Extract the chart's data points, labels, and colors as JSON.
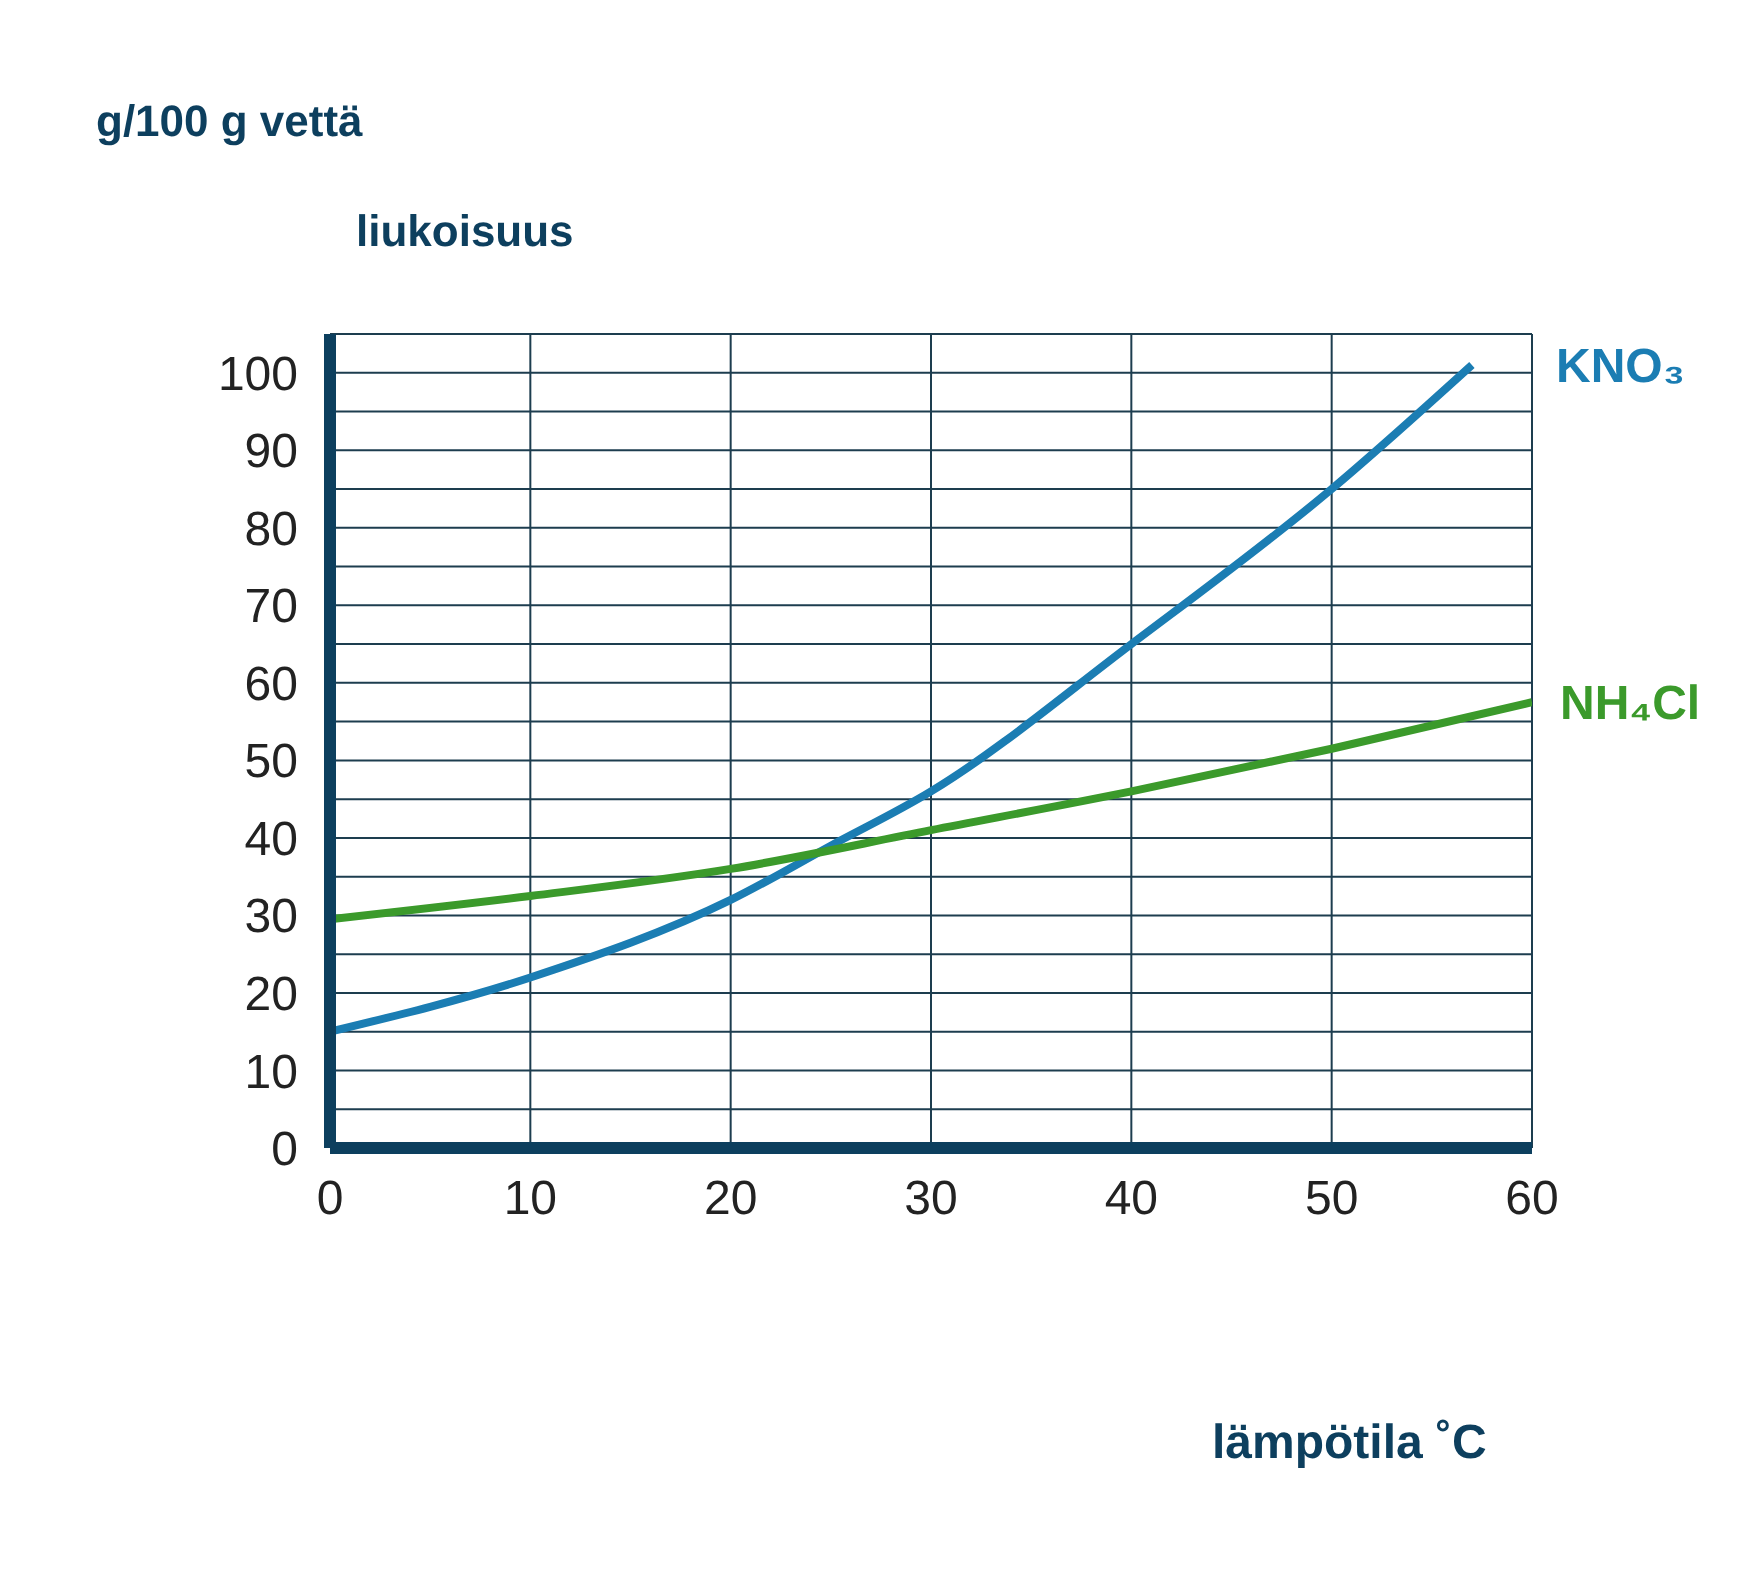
{
  "chart_data": {
    "type": "line",
    "ylabel": "liukoisuus",
    "xlabel": "lämpötila ˚C",
    "annotations": [
      "g/100 g vettä"
    ],
    "xlim": [
      0,
      60
    ],
    "xticks": [
      0,
      10,
      20,
      30,
      40,
      50,
      60
    ],
    "ylim": [
      0,
      105
    ],
    "yticks": [
      0,
      {
        "value": 5,
        "label": null
      },
      10,
      {
        "value": 15,
        "label": null
      },
      20,
      {
        "value": 25,
        "label": null
      },
      30,
      {
        "value": 35,
        "label": null
      },
      40,
      {
        "value": 45,
        "label": null
      },
      50,
      {
        "value": 55,
        "label": null
      },
      60,
      {
        "value": 65,
        "label": null
      },
      70,
      {
        "value": 75,
        "label": null
      },
      80,
      {
        "value": 85,
        "label": null
      },
      90,
      {
        "value": 95,
        "label": null
      },
      100
    ],
    "grid": true,
    "marker": "none",
    "line_style": "solid",
    "legend": false,
    "series": [
      {
        "name": "KNO₃",
        "color": "#1b7db3",
        "x": [
          0,
          10,
          20,
          25,
          30,
          40,
          50,
          57
        ],
        "values": [
          15,
          22,
          32,
          39,
          46,
          65,
          85,
          101
        ]
      },
      {
        "name": "NH₄Cl",
        "color": "#3b9a2b",
        "x": [
          0,
          10,
          20,
          30,
          40,
          50,
          60
        ],
        "values": [
          29.5,
          32.5,
          36,
          41,
          46,
          51.5,
          57.5
        ]
      }
    ]
  }
}
